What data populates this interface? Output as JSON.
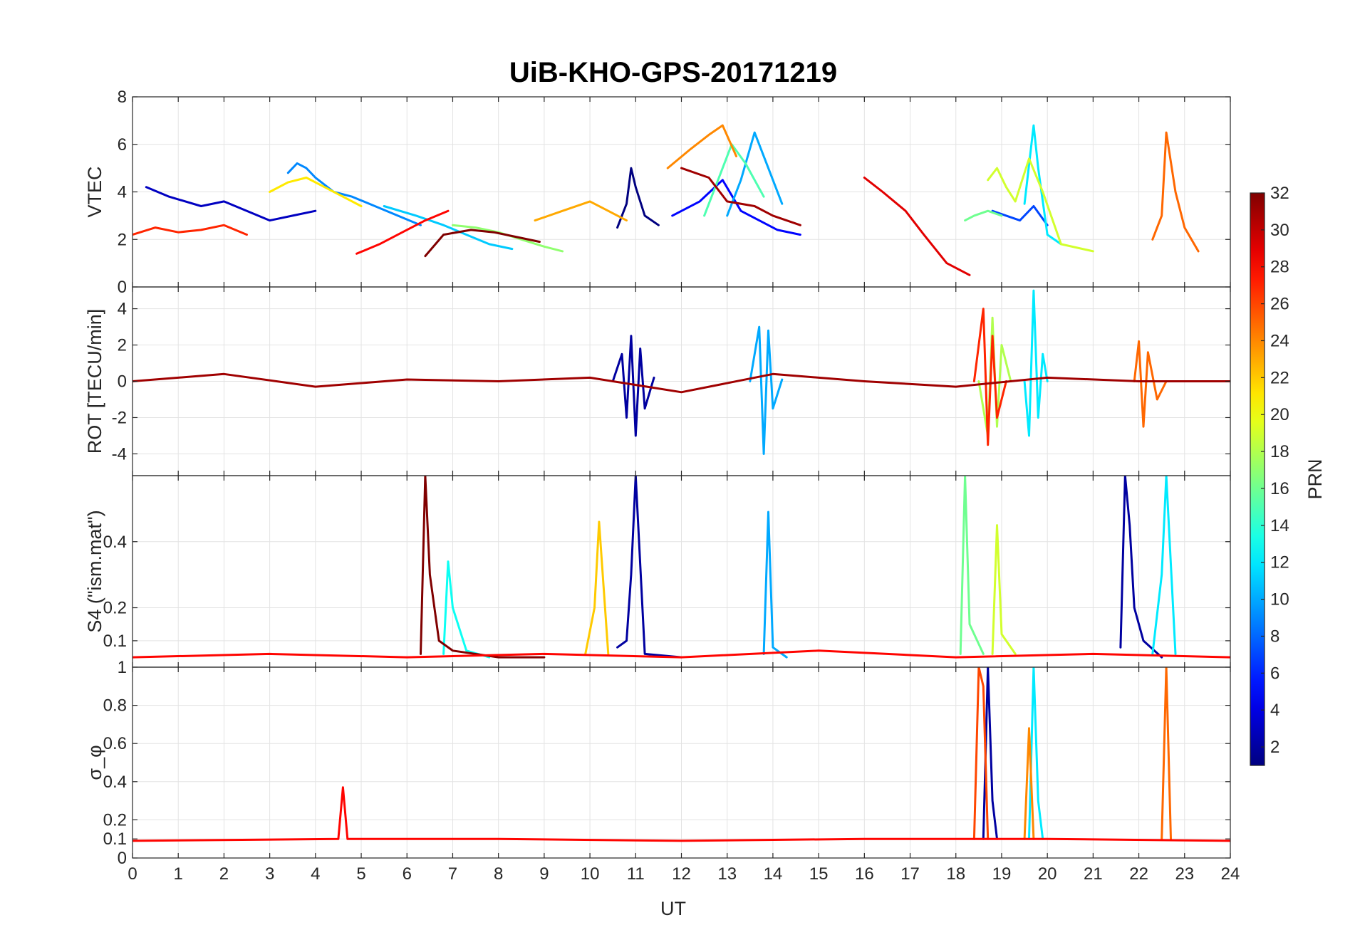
{
  "chart_data": {
    "type": "line",
    "title": "UiB-KHO-GPS-20171219",
    "xlabel": "UT",
    "xlim": [
      0,
      24
    ],
    "x_ticks": [
      "0",
      "1",
      "2",
      "3",
      "4",
      "5",
      "6",
      "7",
      "8",
      "9",
      "10",
      "11",
      "12",
      "13",
      "14",
      "15",
      "16",
      "17",
      "18",
      "19",
      "20",
      "21",
      "22",
      "23",
      "24"
    ],
    "colorbar": {
      "label": "PRN",
      "range": [
        1,
        32
      ],
      "ticks": [
        "2",
        "4",
        "6",
        "8",
        "10",
        "12",
        "14",
        "16",
        "18",
        "20",
        "22",
        "24",
        "26",
        "28",
        "30",
        "32"
      ],
      "colormap": "jet"
    },
    "panels": [
      {
        "id": "vtec",
        "ylabel": "VTEC",
        "ylim": [
          0,
          8
        ],
        "yticks": [
          "0",
          "2",
          "4",
          "6",
          "8"
        ],
        "series": [
          {
            "prn": 1,
            "x": [
              10.6,
              10.8,
              10.9,
              11.0,
              11.2,
              11.5
            ],
            "y": [
              2.5,
              3.5,
              5.0,
              4.2,
              3.0,
              2.6
            ]
          },
          {
            "prn": 3,
            "x": [
              0.3,
              0.8,
              1.5,
              2.0,
              2.5,
              3.0,
              3.5,
              4.0
            ],
            "y": [
              4.2,
              3.8,
              3.4,
              3.6,
              3.2,
              2.8,
              3.0,
              3.2
            ]
          },
          {
            "prn": 5,
            "x": [
              11.8,
              12.4,
              12.9,
              13.3,
              13.7,
              14.1,
              14.6
            ],
            "y": [
              3.0,
              3.6,
              4.5,
              3.2,
              2.8,
              2.4,
              2.2
            ]
          },
          {
            "prn": 7,
            "x": [
              18.8,
              19.1,
              19.4,
              19.7,
              20.0
            ],
            "y": [
              3.2,
              3.0,
              2.8,
              3.4,
              2.6
            ]
          },
          {
            "prn": 9,
            "x": [
              3.4,
              3.6,
              3.8,
              4.0,
              4.4,
              4.8,
              5.3,
              5.8,
              6.3
            ],
            "y": [
              4.8,
              5.2,
              5.0,
              4.6,
              4.0,
              3.8,
              3.4,
              3.0,
              2.6
            ]
          },
          {
            "prn": 10,
            "x": [
              13.0,
              13.3,
              13.6,
              13.9,
              14.2
            ],
            "y": [
              3.0,
              4.5,
              6.5,
              5.0,
              3.5
            ]
          },
          {
            "prn": 11,
            "x": [
              5.5,
              6.2,
              6.8,
              7.3,
              7.8,
              8.3
            ],
            "y": [
              3.4,
              3.0,
              2.6,
              2.2,
              1.8,
              1.6
            ]
          },
          {
            "prn": 12,
            "x": [
              19.5,
              19.7,
              19.8,
              20.0,
              20.3
            ],
            "y": [
              3.5,
              6.8,
              5.0,
              2.2,
              1.8
            ]
          },
          {
            "prn": 15,
            "x": [
              12.5,
              12.8,
              13.1,
              13.4,
              13.8
            ],
            "y": [
              3.0,
              4.5,
              6.0,
              5.2,
              3.8
            ]
          },
          {
            "prn": 16,
            "x": [
              18.2,
              18.4,
              18.7,
              19.0
            ],
            "y": [
              2.8,
              3.0,
              3.2,
              3.0
            ]
          },
          {
            "prn": 17,
            "x": [
              7.0,
              7.5,
              8.0,
              8.5,
              9.0,
              9.4
            ],
            "y": [
              2.6,
              2.5,
              2.3,
              2.0,
              1.7,
              1.5
            ]
          },
          {
            "prn": 19,
            "x": [
              18.7,
              18.9,
              19.1,
              19.3,
              19.6,
              19.9,
              20.3,
              21.0
            ],
            "y": [
              4.5,
              5.0,
              4.2,
              3.6,
              5.4,
              4.0,
              1.8,
              1.5
            ]
          },
          {
            "prn": 21,
            "x": [
              3.0,
              3.4,
              3.8,
              4.2,
              4.6,
              5.0
            ],
            "y": [
              4.0,
              4.4,
              4.6,
              4.2,
              3.8,
              3.4
            ]
          },
          {
            "prn": 23,
            "x": [
              8.8,
              9.4,
              10.0,
              10.4,
              10.8
            ],
            "y": [
              2.8,
              3.2,
              3.6,
              3.2,
              2.8
            ]
          },
          {
            "prn": 24,
            "x": [
              11.7,
              12.2,
              12.6,
              12.9,
              13.2
            ],
            "y": [
              5.0,
              5.8,
              6.4,
              6.8,
              5.5
            ]
          },
          {
            "prn": 25,
            "x": [
              22.3,
              22.5,
              22.6,
              22.8,
              23.0,
              23.3
            ],
            "y": [
              2.0,
              3.0,
              6.5,
              4.0,
              2.5,
              1.5
            ]
          },
          {
            "prn": 27,
            "x": [
              0.0,
              0.5,
              1.0,
              1.5,
              2.0,
              2.5
            ],
            "y": [
              2.2,
              2.5,
              2.3,
              2.4,
              2.6,
              2.2
            ]
          },
          {
            "prn": 28,
            "x": [
              4.9,
              5.4,
              5.9,
              6.4,
              6.9
            ],
            "y": [
              1.4,
              1.8,
              2.3,
              2.8,
              3.2
            ]
          },
          {
            "prn": 29,
            "x": [
              16.0,
              16.4,
              16.9,
              17.3,
              17.8,
              18.3
            ],
            "y": [
              4.6,
              4.0,
              3.2,
              2.2,
              1.0,
              0.5
            ]
          },
          {
            "prn": 31,
            "x": [
              12.0,
              12.6,
              13.0,
              13.6,
              14.0,
              14.6
            ],
            "y": [
              5.0,
              4.6,
              3.6,
              3.4,
              3.0,
              2.6
            ]
          },
          {
            "prn": 32,
            "x": [
              6.4,
              6.8,
              7.4,
              7.9,
              8.4,
              8.9
            ],
            "y": [
              1.3,
              2.2,
              2.4,
              2.3,
              2.1,
              1.9
            ]
          }
        ]
      },
      {
        "id": "rot",
        "ylabel": "ROT [TECU/min]",
        "ylim": [
          -5.2,
          5.2
        ],
        "yticks": [
          "-4",
          "-2",
          "0",
          "2",
          "4"
        ],
        "series": [
          {
            "prn": 2,
            "x": [
              10.5,
              10.7,
              10.8,
              10.9,
              11.0,
              11.1,
              11.2,
              11.4
            ],
            "y": [
              0.0,
              1.5,
              -2.0,
              2.5,
              -3.0,
              1.8,
              -1.5,
              0.2
            ]
          },
          {
            "prn": 10,
            "x": [
              13.5,
              13.7,
              13.8,
              13.9,
              14.0,
              14.2
            ],
            "y": [
              0.0,
              3.0,
              -4.0,
              2.8,
              -1.5,
              0.1
            ]
          },
          {
            "prn": 12,
            "x": [
              19.5,
              19.6,
              19.7,
              19.8,
              19.9,
              20.0
            ],
            "y": [
              0.0,
              -3.0,
              5.0,
              -2.0,
              1.5,
              0.0
            ]
          },
          {
            "prn": 18,
            "x": [
              18.5,
              18.7,
              18.8,
              18.9,
              19.0,
              19.2
            ],
            "y": [
              0.0,
              -3.0,
              3.5,
              -2.5,
              2.0,
              0.0
            ]
          },
          {
            "prn": 25,
            "x": [
              21.9,
              22.0,
              22.1,
              22.2,
              22.4,
              22.6
            ],
            "y": [
              0.0,
              2.2,
              -2.5,
              1.6,
              -1.0,
              0.0
            ]
          },
          {
            "prn": 27,
            "x": [
              18.4,
              18.6,
              18.7,
              18.8,
              18.9,
              19.1
            ],
            "y": [
              0.0,
              4.0,
              -3.5,
              2.5,
              -2.0,
              0.0
            ]
          },
          {
            "prn": 31,
            "x": [
              0.0,
              2.0,
              4.0,
              6.0,
              8.0,
              10.0,
              12.0,
              14.0,
              16.0,
              18.0,
              20.0,
              22.0,
              24.0
            ],
            "y": [
              0.0,
              0.4,
              -0.3,
              0.1,
              0.0,
              0.2,
              -0.6,
              0.4,
              0.0,
              -0.3,
              0.2,
              0.0,
              0.0
            ]
          }
        ]
      },
      {
        "id": "s4",
        "ylabel": "S4 (\"ism.mat\")",
        "ylim": [
          0.02,
          0.6
        ],
        "yticks": [
          "0.1",
          "0.2",
          "0.4"
        ],
        "series": [
          {
            "prn": 2,
            "x": [
              10.6,
              10.8,
              10.9,
              11.0,
              11.2,
              12.0
            ],
            "y": [
              0.08,
              0.1,
              0.3,
              0.6,
              0.06,
              0.05
            ]
          },
          {
            "prn": 2,
            "x": [
              21.6,
              21.7,
              21.8,
              21.9,
              22.1,
              22.5
            ],
            "y": [
              0.08,
              0.6,
              0.45,
              0.2,
              0.1,
              0.05
            ]
          },
          {
            "prn": 10,
            "x": [
              13.8,
              13.9,
              14.0,
              14.3
            ],
            "y": [
              0.06,
              0.49,
              0.08,
              0.05
            ]
          },
          {
            "prn": 12,
            "x": [
              22.3,
              22.5,
              22.6,
              22.8
            ],
            "y": [
              0.06,
              0.3,
              0.6,
              0.06
            ]
          },
          {
            "prn": 16,
            "x": [
              18.1,
              18.2,
              18.3,
              18.6
            ],
            "y": [
              0.06,
              0.6,
              0.15,
              0.06
            ]
          },
          {
            "prn": 19,
            "x": [
              18.8,
              18.9,
              19.0,
              19.3
            ],
            "y": [
              0.06,
              0.45,
              0.12,
              0.06
            ]
          },
          {
            "prn": 22,
            "x": [
              9.9,
              10.1,
              10.2,
              10.4
            ],
            "y": [
              0.06,
              0.2,
              0.46,
              0.06
            ]
          },
          {
            "prn": 13,
            "x": [
              6.8,
              6.9,
              7.0,
              7.3,
              7.8
            ],
            "y": [
              0.06,
              0.34,
              0.2,
              0.07,
              0.05
            ]
          },
          {
            "prn": 32,
            "x": [
              6.3,
              6.4,
              6.5,
              6.7,
              7.0,
              8.0,
              9.0
            ],
            "y": [
              0.06,
              0.6,
              0.3,
              0.1,
              0.07,
              0.05,
              0.05
            ]
          },
          {
            "prn": 28,
            "x": [
              0.0,
              3.0,
              6.0,
              9.0,
              12.0,
              15.0,
              18.0,
              21.0,
              24.0
            ],
            "y": [
              0.05,
              0.06,
              0.05,
              0.06,
              0.05,
              0.07,
              0.05,
              0.06,
              0.05
            ]
          }
        ]
      },
      {
        "id": "sigma-phi",
        "ylabel": "σ_φ",
        "ylim": [
          0,
          1
        ],
        "yticks": [
          "0",
          "0.1",
          "0.2",
          "0.4",
          "0.6",
          "0.8",
          "1"
        ],
        "series": [
          {
            "prn": 2,
            "x": [
              18.6,
              18.7,
              18.8,
              18.9
            ],
            "y": [
              0.1,
              1.0,
              0.3,
              0.1
            ]
          },
          {
            "prn": 26,
            "x": [
              18.4,
              18.5,
              18.6,
              18.7
            ],
            "y": [
              0.1,
              1.0,
              0.9,
              0.1
            ]
          },
          {
            "prn": 12,
            "x": [
              19.6,
              19.7,
              19.8,
              19.9
            ],
            "y": [
              0.1,
              1.0,
              0.3,
              0.1
            ]
          },
          {
            "prn": 24,
            "x": [
              19.5,
              19.6,
              19.7
            ],
            "y": [
              0.1,
              0.68,
              0.1
            ]
          },
          {
            "prn": 25,
            "x": [
              22.5,
              22.6,
              22.7
            ],
            "y": [
              0.1,
              1.0,
              0.1
            ]
          },
          {
            "prn": 28,
            "x": [
              0.0,
              4.5,
              4.6,
              4.7,
              8.0,
              12.0,
              16.0,
              20.0,
              24.0
            ],
            "y": [
              0.09,
              0.1,
              0.37,
              0.1,
              0.1,
              0.09,
              0.1,
              0.1,
              0.09
            ]
          }
        ]
      }
    ]
  }
}
